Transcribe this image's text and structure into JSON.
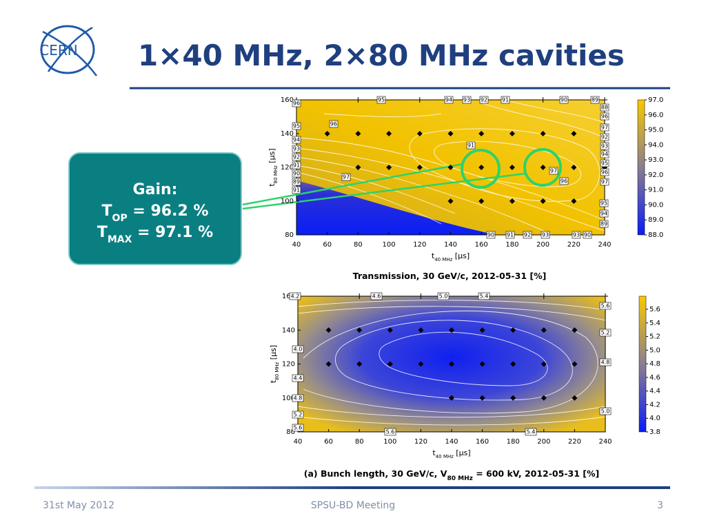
{
  "header": {
    "logo": "CERN",
    "title": "1×40 MHz, 2×80 MHz cavities"
  },
  "callout": {
    "heading": "Gain:",
    "lines": [
      {
        "symbol": "T",
        "subscript": "OP",
        "text": " = 96.2 %"
      },
      {
        "symbol": "T",
        "subscript": "MAX",
        "text": " = 97.1 %"
      }
    ]
  },
  "figures": [
    {
      "caption": {
        "text": "Transmission, 30 GeV/c, 2012-05-31 [%]"
      },
      "x_label": {
        "symbol": "t",
        "subscript": "40 MHz",
        "unit": " [μs]"
      },
      "y_label": {
        "symbol": "t",
        "subscript": "80 MHz",
        "unit": " [μs]"
      },
      "xticks": [
        "40",
        "60",
        "80",
        "100",
        "120",
        "140",
        "160",
        "180",
        "200",
        "220",
        "240"
      ],
      "yticks": [
        "80",
        "100",
        "120",
        "140",
        "160"
      ],
      "colorbar_ticks": [
        "97.0",
        "96.0",
        "95.0",
        "94.0",
        "93.0",
        "92.0",
        "91.0",
        "90.0",
        "89.0",
        "88.0"
      ],
      "contour_labels": [
        "96",
        "95",
        "94",
        "93",
        "92",
        "91",
        "90",
        "89",
        "96",
        "95",
        "94",
        "93",
        "92",
        "91",
        "90",
        "89",
        "88",
        "96",
        "97",
        "91",
        "97",
        "97",
        "96",
        "95",
        "94",
        "89",
        "90",
        "91",
        "92",
        "93",
        "93",
        "90",
        "91",
        "92",
        "93",
        "94",
        "95",
        "96",
        "97"
      ]
    },
    {
      "caption": {
        "text": "(a) Bunch length, 30 GeV/c, V",
        "subscript": "80 MHz",
        "text2": " = 600 kV, 2012-05-31 [%]"
      },
      "x_label": {
        "symbol": "t",
        "subscript": "40 MHz",
        "unit": " [μs]"
      },
      "y_label": {
        "symbol": "t",
        "subscript": "80 MHz",
        "unit": " [μs]"
      },
      "xticks": [
        "40",
        "60",
        "80",
        "100",
        "120",
        "140",
        "160",
        "180",
        "200",
        "220",
        "240"
      ],
      "yticks": [
        "80",
        "100",
        "120",
        "140",
        "160"
      ],
      "colorbar_ticks": [
        "5.6",
        "5.4",
        "5.2",
        "5.0",
        "4.8",
        "4.6",
        "4.4",
        "4.2",
        "4.0",
        "3.8"
      ],
      "contour_labels": [
        "4.2",
        "4.6",
        "5.0",
        "5.4",
        "5.6",
        "5.2",
        "4.8",
        "5.0",
        "4.0",
        "4.4",
        "4.8",
        "5.2",
        "5.6",
        "5.6",
        "5.4"
      ]
    }
  ],
  "footer": {
    "date": "31st May 2012",
    "event": "SPSU-BD Meeting",
    "page": "3"
  }
}
